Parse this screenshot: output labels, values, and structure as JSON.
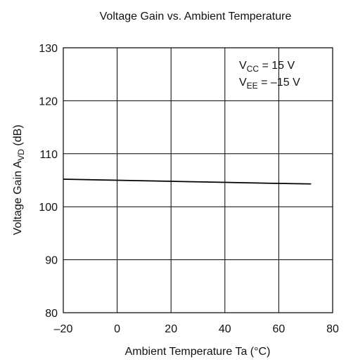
{
  "chart_data": {
    "type": "line",
    "title": "Voltage Gain vs. Ambient Temperature",
    "xlabel": "Ambient Temperature  Ta  (°C)",
    "ylabel": {
      "main": "Voltage Gain  A",
      "sub": "VD",
      "tail": "  (dB)"
    },
    "annotations": [
      {
        "main": "V",
        "sub": "CC",
        "tail": " = 15 V"
      },
      {
        "main": "V",
        "sub": "EE",
        "tail": " = –15 V"
      }
    ],
    "xlim": [
      -20,
      80
    ],
    "xticks": [
      {
        "value": -20,
        "label": "–20"
      },
      0,
      20,
      40,
      60,
      80
    ],
    "ylim": [
      80,
      130
    ],
    "yticks": [
      80,
      90,
      100,
      110,
      120,
      130
    ],
    "grid": true,
    "series": [
      {
        "color": "#000000",
        "x": [
          -20,
          0,
          20,
          40,
          60,
          72
        ],
        "values": [
          105.2,
          105.0,
          104.8,
          104.6,
          104.4,
          104.3
        ]
      }
    ]
  }
}
